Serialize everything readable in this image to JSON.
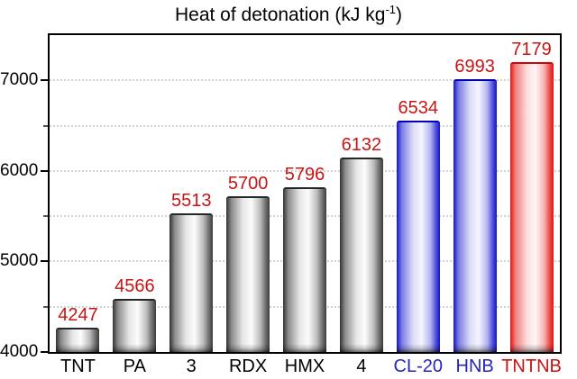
{
  "figure": {
    "title_main": "Heat of detonation (kJ kg",
    "title_sup": "-1",
    "title_end": ")"
  },
  "chart_data": {
    "type": "bar",
    "title": "Heat of detonation (kJ kg⁻¹)",
    "xlabel": "",
    "ylabel": "",
    "categories": [
      "TNT",
      "PA",
      "3",
      "RDX",
      "HMX",
      "4",
      "CL-20",
      "HNB",
      "TNTNB"
    ],
    "values": [
      4247,
      4566,
      5513,
      5700,
      5796,
      6132,
      6534,
      6993,
      7179
    ],
    "bar_styles": [
      "gray",
      "gray",
      "gray",
      "gray",
      "gray",
      "gray",
      "blue",
      "blue",
      "red"
    ],
    "category_label_colors": [
      "#000000",
      "#000000",
      "#000000",
      "#000000",
      "#000000",
      "#000000",
      "#2525bb",
      "#2525bb",
      "#cc1111"
    ],
    "value_label_color": "#c81414",
    "ylim": [
      4000,
      7500
    ],
    "yticks_major": [
      4000,
      5000,
      6000,
      7000
    ],
    "yticks_minor": [
      4500,
      5500,
      6500
    ],
    "gridline_values": [
      4500,
      5000,
      5500,
      6000,
      6500,
      7000
    ],
    "grid_style": "dotted",
    "legend_position": "none",
    "axis_color": "#000000",
    "palette": {
      "gray": {
        "top_edge": "#262626",
        "stops": "#323232 0%, #8c8c8c 12%, #e6e6e6 38%, #fcfcfc 58%, #bdbdbd 78%, #6a6a6a 92%, #3c3c3c 100%"
      },
      "blue": {
        "top_edge": "#0000b0",
        "stops": "#1414c8 0%, #7d7de6 12%, #dcdcf8 38%, #f5f5ff 58%, #b4b4f2 78%, #4646d8 92%, #1414c8 100%"
      },
      "red": {
        "top_edge": "#cc0606",
        "stops": "#e61212 0%, #f08080 12%, #fbdcdc 38%, #fff5f5 58%, #f6b4b4 78%, #ea4646 92%, #e61212 100%"
      }
    }
  }
}
